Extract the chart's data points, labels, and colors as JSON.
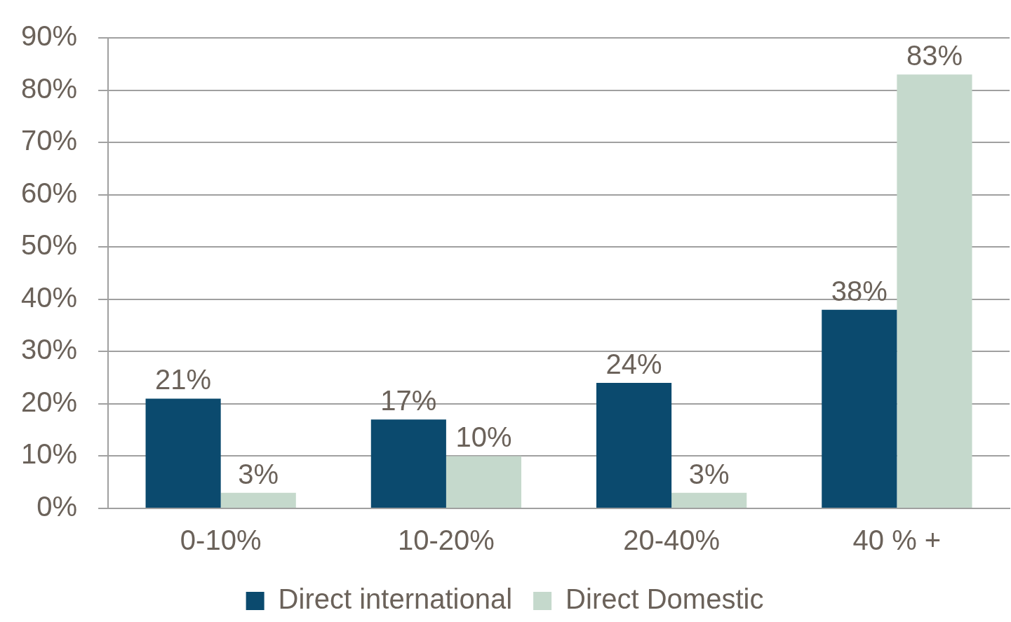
{
  "chart_data": {
    "type": "bar",
    "categories": [
      "0-10%",
      "10-20%",
      "20-40%",
      "40 % +"
    ],
    "series": [
      {
        "name": "Direct international",
        "color": "#0b4a6e",
        "values": [
          21,
          17,
          24,
          38
        ],
        "value_labels": [
          "21%",
          "17%",
          "24%",
          "38%"
        ]
      },
      {
        "name": "Direct Domestic",
        "color": "#c5d9cc",
        "values": [
          3,
          10,
          3,
          83
        ],
        "value_labels": [
          "3%",
          "10%",
          "3%",
          "83%"
        ]
      }
    ],
    "ylim": [
      0,
      90
    ],
    "yticks": [
      {
        "value": 0,
        "label": "0%"
      },
      {
        "value": 10,
        "label": "10%"
      },
      {
        "value": 20,
        "label": "20%"
      },
      {
        "value": 30,
        "label": "30%"
      },
      {
        "value": 40,
        "label": "40%"
      },
      {
        "value": 50,
        "label": "50%"
      },
      {
        "value": 60,
        "label": "60%"
      },
      {
        "value": 70,
        "label": "70%"
      },
      {
        "value": 80,
        "label": "80%"
      },
      {
        "value": 90,
        "label": "90%"
      }
    ],
    "grid": "y",
    "legend": "bottom"
  }
}
